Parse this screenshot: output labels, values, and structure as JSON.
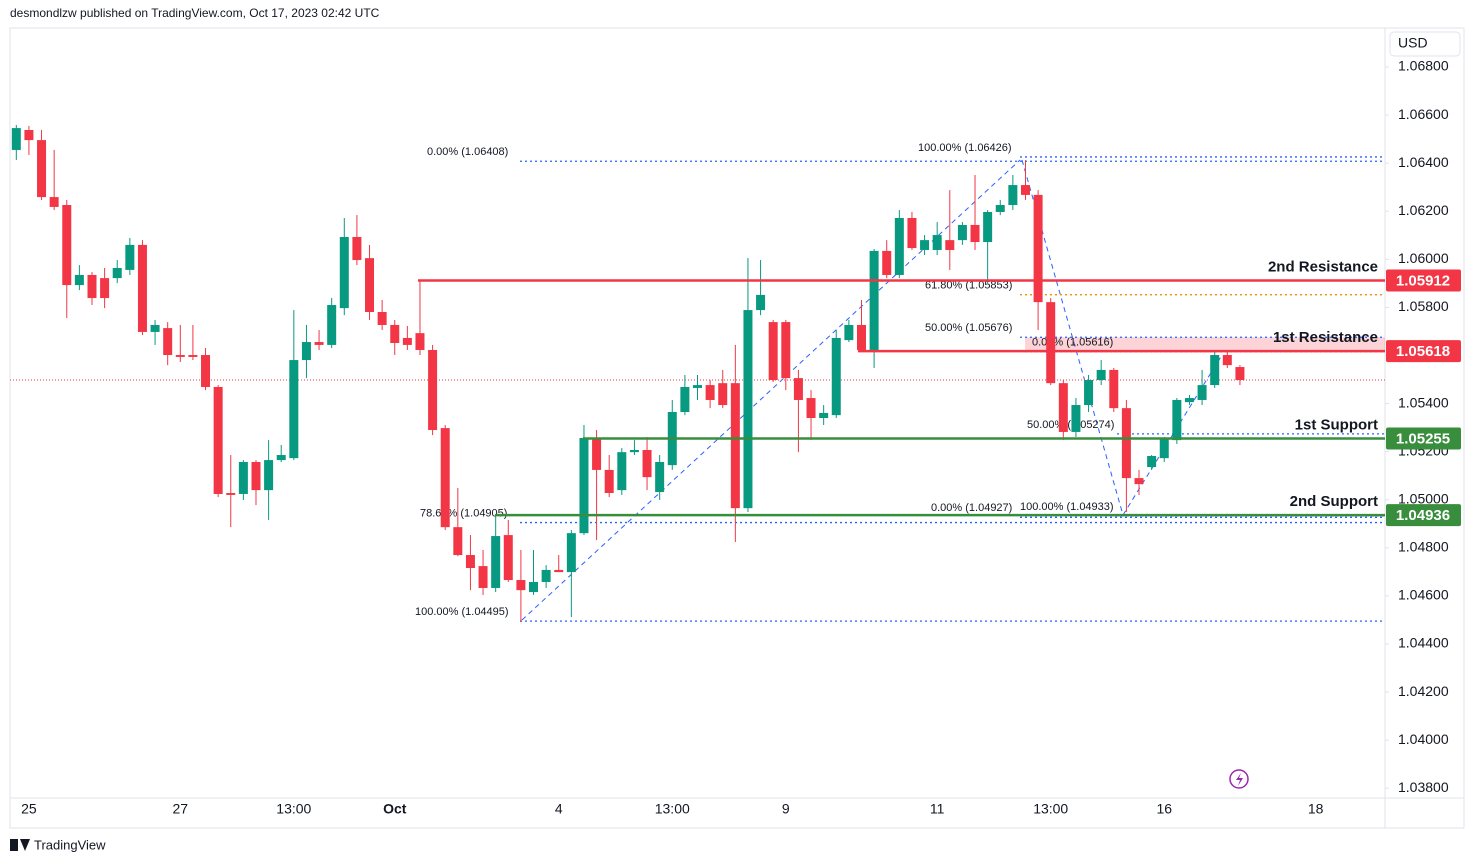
{
  "header": {
    "publisher": "desmondlzw published on TradingView.com, Oct 17, 2023 02:42 UTC",
    "currency": "USD",
    "brand": "TradingView"
  },
  "chart_data": {
    "type": "candlestick",
    "categories": [
      null,
      "25",
      null,
      null,
      null,
      null,
      null,
      null,
      null,
      null,
      null,
      null,
      null,
      "27",
      null,
      null,
      null,
      null,
      null,
      null,
      null,
      null,
      "13:00",
      null,
      null,
      null,
      null,
      null,
      null,
      null,
      "Oct",
      null,
      null,
      null,
      null,
      null,
      null,
      null,
      null,
      null,
      null,
      null,
      null,
      "4",
      null,
      null,
      null,
      null,
      null,
      null,
      null,
      null,
      "13:00",
      null,
      null,
      null,
      null,
      null,
      null,
      null,
      null,
      "9",
      null,
      null,
      null,
      null,
      null,
      null,
      null,
      null,
      null,
      null,
      null,
      "11",
      null,
      null,
      null,
      null,
      null,
      null,
      null,
      null,
      "13:00",
      null,
      null,
      null,
      null,
      null,
      null,
      null,
      null,
      "16",
      null,
      null,
      null,
      null,
      null,
      null,
      null,
      null,
      null,
      null,
      null,
      "18",
      null,
      null,
      null,
      null,
      null
    ],
    "open": [
      1.06455,
      1.06538,
      1.06496,
      1.06259,
      1.06226,
      1.05893,
      1.05935,
      1.05922,
      1.05922,
      1.05956,
      1.0606,
      1.05698,
      1.05714,
      1.05602,
      1.05602,
      1.05602,
      1.05469,
      1.05028,
      1.05024,
      1.05157,
      1.0504,
      1.05165,
      1.05173,
      1.05581,
      1.05656,
      1.05644,
      1.05797,
      1.06093,
      1.06005,
      1.05781,
      1.05727,
      1.05673,
      1.05693,
      1.05623,
      1.05298,
      1.04886,
      1.0477,
      1.04724,
      1.04633,
      1.04853,
      1.04666,
      1.04616,
      1.04658,
      1.04708,
      1.04699,
      1.04861,
      1.05257,
      1.05124,
      1.0504,
      1.05198,
      1.05207,
      1.05032,
      1.05144,
      1.05365,
      1.05465,
      1.05477,
      1.05485,
      1.05485,
      1.04965,
      1.05789,
      1.05739,
      1.05739,
      1.05506,
      1.05423,
      1.0534,
      1.05352,
      1.05664,
      1.05727,
      1.05623,
      1.06035,
      1.05935,
      1.06172,
      1.06039,
      1.06039,
      1.0608,
      1.0608,
      1.06143,
      1.06072,
      1.06197,
      1.06226,
      1.06309,
      1.06268,
      1.05822,
      1.05485,
      1.05282,
      1.05394,
      1.05498,
      1.0554,
      1.05381,
      1.0509,
      1.05136,
      1.05173,
      1.05248,
      1.05406,
      1.05415,
      1.05477,
      1.05602,
      1.05552,
      null,
      null,
      null,
      null,
      null,
      null,
      null,
      null,
      null,
      null,
      null
    ],
    "high": [
      1.06559,
      1.06555,
      1.06538,
      1.06455,
      1.06247,
      1.05976,
      1.05947,
      1.05964,
      1.05997,
      1.06089,
      1.0608,
      1.05748,
      1.05739,
      1.05727,
      1.05727,
      1.05631,
      1.05477,
      1.05186,
      1.05165,
      1.05165,
      1.05248,
      1.05228,
      1.05789,
      1.05727,
      1.05706,
      1.05839,
      1.06172,
      1.06184,
      1.0606,
      1.05831,
      1.05748,
      1.05723,
      1.05914,
      1.05644,
      1.05311,
      1.05049,
      1.04853,
      1.04791,
      1.04936,
      1.04916,
      1.04791,
      1.04791,
      1.04728,
      1.0477,
      1.04874,
      1.05311,
      1.0529,
      1.05186,
      1.05215,
      1.05248,
      1.05261,
      1.05186,
      1.05415,
      1.05519,
      1.05519,
      1.05498,
      1.0554,
      1.05644,
      1.06005,
      1.05997,
      1.05748,
      1.05748,
      1.0554,
      1.05456,
      1.05394,
      1.05706,
      1.05748,
      1.05831,
      1.06043,
      1.0608,
      1.06205,
      1.06197,
      1.06101,
      1.06155,
      1.06288,
      1.06155,
      1.06351,
      1.06205,
      1.06247,
      1.06351,
      1.06413,
      1.06288,
      1.05839,
      1.05498,
      1.05423,
      1.05519,
      1.05581,
      1.05548,
      1.05415,
      1.05124,
      1.05186,
      1.05261,
      1.05423,
      1.05436,
      1.0554,
      1.05614,
      1.05623,
      1.0556,
      null,
      null,
      null,
      null,
      null,
      null,
      null,
      null,
      null,
      null,
      null
    ],
    "low": [
      1.06413,
      1.06434,
      1.06247,
      1.06205,
      1.05756,
      1.05872,
      1.0581,
      1.05797,
      1.05901,
      1.05935,
      1.05685,
      1.05644,
      1.0556,
      1.05573,
      1.05581,
      1.05456,
      1.05011,
      1.04886,
      1.04999,
      1.04978,
      1.04916,
      1.05157,
      1.05165,
      1.05506,
      1.05623,
      1.05631,
      1.05768,
      1.05976,
      1.05748,
      1.05706,
      1.05602,
      1.05623,
      1.05602,
      1.05269,
      1.04874,
      1.04765,
      1.04624,
      1.04604,
      1.04616,
      1.04658,
      1.04491,
      1.04604,
      1.04633,
      1.04699,
      1.04512,
      1.04853,
      1.04832,
      1.05011,
      1.0502,
      1.05186,
      1.0504,
      1.04999,
      1.05124,
      1.05352,
      1.05415,
      1.05381,
      1.05381,
      1.04824,
      1.04949,
      1.05768,
      1.0549,
      1.05456,
      1.05198,
      1.05248,
      1.05311,
      1.0534,
      1.05656,
      1.05614,
      1.05548,
      1.05922,
      1.05922,
      1.06039,
      1.06018,
      1.06018,
      1.05956,
      1.0606,
      1.06039,
      1.05901,
      1.06184,
      1.06205,
      1.06247,
      1.05706,
      1.05477,
      1.05248,
      1.05261,
      1.05365,
      1.05477,
      1.05365,
      1.04949,
      1.0502,
      1.05124,
      1.05157,
      1.05232,
      1.05394,
      1.05394,
      1.05465,
      1.05548,
      1.05477,
      null,
      null,
      null,
      null,
      null,
      null,
      null,
      null,
      null,
      null,
      null
    ],
    "close": [
      1.06546,
      1.06496,
      1.06259,
      1.06218,
      1.05893,
      1.05935,
      1.05839,
      1.05839,
      1.05964,
      1.0606,
      1.05698,
      1.05727,
      1.05602,
      1.05594,
      1.05594,
      1.05469,
      1.05024,
      1.0502,
      1.05157,
      1.0504,
      1.05165,
      1.05186,
      1.05581,
      1.05656,
      1.05644,
      1.0581,
      1.06093,
      1.05997,
      1.05781,
      1.05727,
      1.05652,
      1.05644,
      1.05623,
      1.0529,
      1.04886,
      1.0477,
      1.04716,
      1.04633,
      1.04849,
      1.04666,
      1.04624,
      1.04658,
      1.04708,
      1.04699,
      1.04861,
      1.05257,
      1.05124,
      1.05028,
      1.05198,
      1.05207,
      1.05094,
      1.05157,
      1.05365,
      1.05469,
      1.05477,
      1.05415,
      1.05394,
      1.04965,
      1.05789,
      1.05852,
      1.05498,
      1.05506,
      1.05415,
      1.0534,
      1.05361,
      1.05673,
      1.05727,
      1.05623,
      1.06035,
      1.05935,
      1.06172,
      1.06047,
      1.0608,
      1.06101,
      1.06039,
      1.06143,
      1.06072,
      1.06197,
      1.06226,
      1.06309,
      1.06268,
      1.05822,
      1.05485,
      1.05282,
      1.05394,
      1.05498,
      1.0554,
      1.05381,
      1.0509,
      1.05065,
      1.05182,
      1.05257,
      1.05415,
      1.05423,
      1.05477,
      1.05602,
      1.0556,
      1.05498,
      null,
      null,
      null,
      null,
      null,
      null,
      null,
      null,
      null,
      null,
      null
    ],
    "up_color": "#089981",
    "down_color": "#f23645",
    "ylim": [
      1.03751,
      1.06954
    ],
    "yticks": [
      {
        "value": 1.038,
        "label": "1.03800"
      },
      {
        "value": 1.04,
        "label": "1.04000"
      },
      {
        "value": 1.042,
        "label": "1.04200"
      },
      {
        "value": 1.044,
        "label": "1.04400"
      },
      {
        "value": 1.046,
        "label": "1.04600"
      },
      {
        "value": 1.048,
        "label": "1.04800"
      },
      {
        "value": 1.05,
        "label": "1.05000"
      },
      {
        "value": 1.052,
        "label": "1.05200"
      },
      {
        "value": 1.054,
        "label": "1.05400"
      },
      {
        "value": 1.056,
        "label": "1.05600"
      },
      {
        "value": 1.058,
        "label": "1.05800"
      },
      {
        "value": 1.06,
        "label": "1.06000"
      },
      {
        "value": 1.062,
        "label": "1.06200"
      },
      {
        "value": 1.064,
        "label": "1.06400"
      },
      {
        "value": 1.066,
        "label": "1.06600"
      },
      {
        "value": 1.068,
        "label": "1.06800"
      }
    ],
    "grid": false,
    "levels": [
      {
        "label": "2nd Resistance",
        "value": 1.05912,
        "color": "#f23645"
      },
      {
        "label": "1st Resistance",
        "value": 1.05618,
        "color": "#f23645"
      },
      {
        "label": "1st Support",
        "value": 1.05255,
        "color": "#388e3c"
      },
      {
        "label": "2nd Support",
        "value": 1.04936,
        "color": "#388e3c"
      }
    ],
    "fib_levels": [
      {
        "label": "0.00% (1.06408)",
        "value": 1.06408,
        "color": "#2962ff"
      },
      {
        "label": "100.00% (1.06426)",
        "value": 1.06426,
        "color": "#2962ff"
      },
      {
        "label": "61.80% (1.05853)",
        "value": 1.05853,
        "color": "#e69500"
      },
      {
        "label": "50.00% (1.05676)",
        "value": 1.05676,
        "color": "#2962ff"
      },
      {
        "label": "0.00% (1.05616)",
        "value": 1.05616,
        "color": "#2962ff"
      },
      {
        "label": "50.00% (1.05274)",
        "value": 1.05274,
        "color": "#2962ff"
      },
      {
        "label": "78.60% (1.04905)",
        "value": 1.04905,
        "color": "#2962ff"
      },
      {
        "label": "0.00% (1.04927)",
        "value": 1.04927,
        "color": "#2962ff"
      },
      {
        "label": "100.00% (1.04933)",
        "value": 1.04933,
        "color": "#2962ff"
      },
      {
        "label": "100.00% (1.04495)",
        "value": 1.04495,
        "color": "#2962ff"
      }
    ]
  }
}
